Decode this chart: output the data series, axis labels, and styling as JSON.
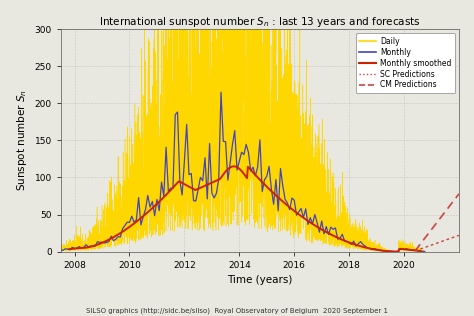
{
  "title": "International sunspot number $S_n$ : last 13 years and forecasts",
  "xlabel": "Time (years)",
  "ylabel": "Sunspot number $S_n$",
  "footnote": "SILSO graphics (http://sidc.be/silso)  Royal Observatory of Belgium  2020 September 1",
  "xlim": [
    2007.5,
    2022.0
  ],
  "ylim": [
    0,
    300
  ],
  "yticks": [
    0,
    50,
    100,
    150,
    200,
    250,
    300
  ],
  "xticks": [
    2008,
    2010,
    2012,
    2014,
    2016,
    2018,
    2020
  ],
  "bg_color": "#e8e8e0",
  "plot_bg_color": "#e8e8e0",
  "daily_color": "#FFD700",
  "monthly_color": "#4444bb",
  "smoothed_color": "#cc2200",
  "sc_pred_color": "#cc4444",
  "cm_pred_color": "#cc4444",
  "legend_labels": [
    "Daily",
    "Monthly",
    "Monthly smoothed",
    "SC Predictions",
    "CM Predictions"
  ]
}
